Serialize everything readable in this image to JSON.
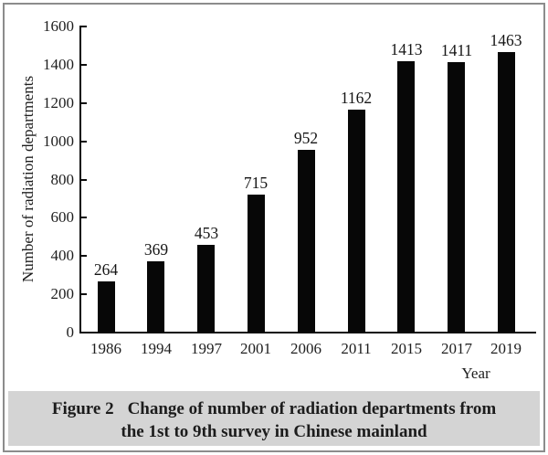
{
  "figure": {
    "caption": {
      "label": "Figure 2",
      "title_line1": "Change of number of radiation departments from",
      "title_line2": "the 1st to 9th survey in Chinese mainland"
    }
  },
  "chart_data": {
    "type": "bar",
    "title": "",
    "categories": [
      "1986",
      "1994",
      "1997",
      "2001",
      "2006",
      "2011",
      "2015",
      "2017",
      "2019"
    ],
    "values": [
      264,
      369,
      453,
      715,
      952,
      1162,
      1413,
      1411,
      1463
    ],
    "xlabel": "Year",
    "ylabel": "Number of radiation departments",
    "ylim": [
      0,
      1600
    ],
    "yticks": [
      0,
      200,
      400,
      600,
      800,
      1000,
      1200,
      1400,
      1600
    ],
    "value_labels_shown": true,
    "grid": false,
    "legend": "none",
    "bar_color": "#070707",
    "caption_bg_color": "#d4d4d4",
    "border_color": "#8c8c8c",
    "text_color": "#1e1e1e"
  }
}
